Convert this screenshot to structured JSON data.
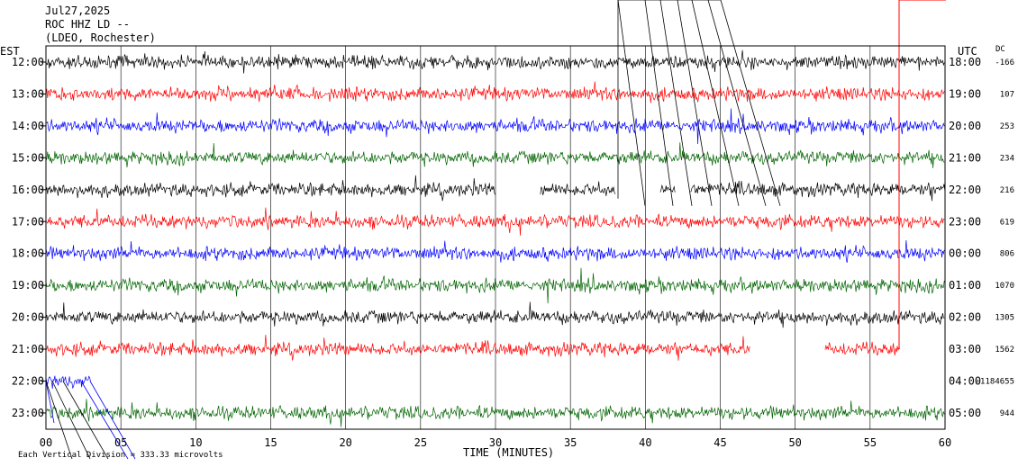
{
  "header": {
    "date": "Jul27,2025",
    "station": "ROC HHZ LD --",
    "network": "(LDEO, Rochester)"
  },
  "left_axis_label": "EST",
  "right_axis_label": "UTC",
  "dc_label": "DC",
  "footer": {
    "scale_note": "Each Vertical Division = 333.33 microvolts"
  },
  "chart_data": {
    "type": "line",
    "title": "",
    "xlabel": "TIME (MINUTES)",
    "xlim": [
      0,
      60
    ],
    "x_ticks": [
      "00",
      "05",
      "10",
      "15",
      "20",
      "25",
      "30",
      "35",
      "40",
      "45",
      "50",
      "55",
      "60"
    ],
    "grid": true,
    "colors": [
      "#000000",
      "#ff0000",
      "#0000ff",
      "#006400"
    ],
    "rows": [
      {
        "est": "12:00",
        "utc": "18:00",
        "dc": "-166",
        "color": "#000000",
        "segments": [
          [
            0,
            60
          ]
        ]
      },
      {
        "est": "13:00",
        "utc": "19:00",
        "dc": "107",
        "color": "#ff0000",
        "segments": [
          [
            0,
            60
          ]
        ]
      },
      {
        "est": "14:00",
        "utc": "20:00",
        "dc": "253",
        "color": "#0000ff",
        "segments": [
          [
            0,
            60
          ]
        ]
      },
      {
        "est": "15:00",
        "utc": "21:00",
        "dc": "234",
        "color": "#006400",
        "segments": [
          [
            0,
            60
          ]
        ]
      },
      {
        "est": "16:00",
        "utc": "22:00",
        "dc": "216",
        "color": "#000000",
        "segments": [
          [
            0,
            30
          ],
          [
            33,
            38
          ],
          [
            41,
            42
          ],
          [
            43,
            60
          ]
        ]
      },
      {
        "est": "17:00",
        "utc": "23:00",
        "dc": "619",
        "color": "#ff0000",
        "segments": [
          [
            0,
            60
          ]
        ]
      },
      {
        "est": "18:00",
        "utc": "00:00",
        "dc": "806",
        "color": "#0000ff",
        "segments": [
          [
            0,
            60
          ]
        ]
      },
      {
        "est": "19:00",
        "utc": "01:00",
        "dc": "1070",
        "color": "#006400",
        "segments": [
          [
            0,
            60
          ]
        ]
      },
      {
        "est": "20:00",
        "utc": "02:00",
        "dc": "1305",
        "color": "#000000",
        "segments": [
          [
            0,
            60
          ]
        ]
      },
      {
        "est": "21:00",
        "utc": "03:00",
        "dc": "1562",
        "color": "#ff0000",
        "segments": [
          [
            0,
            47
          ],
          [
            52,
            57
          ]
        ]
      },
      {
        "est": "22:00",
        "utc": "04:00",
        "dc": "-1184655",
        "color": "#0000ff",
        "segments": [
          [
            0,
            3
          ]
        ]
      },
      {
        "est": "23:00",
        "utc": "05:00",
        "dc": "944",
        "color": "#006400",
        "segments": [
          [
            0,
            60
          ]
        ]
      }
    ]
  }
}
